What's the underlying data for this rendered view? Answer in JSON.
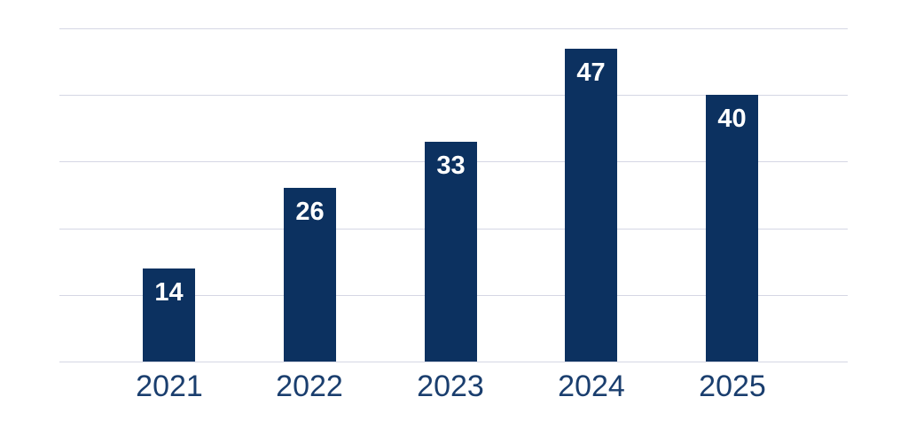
{
  "chart_data": {
    "type": "bar",
    "title": "",
    "xlabel": "",
    "ylabel": "",
    "categories": [
      "2021",
      "2022",
      "2023",
      "2024",
      "2025"
    ],
    "values": [
      14,
      26,
      33,
      47,
      40
    ],
    "ylim": [
      0,
      50
    ],
    "grid_step": 10,
    "grid": true,
    "legend": "none",
    "bar_color": "#0c3160",
    "value_label_color": "#ffffff",
    "axis_label_color": "#1a3e6e",
    "gridline_color": "#d5d7e4",
    "background_color": "#ffffff"
  }
}
